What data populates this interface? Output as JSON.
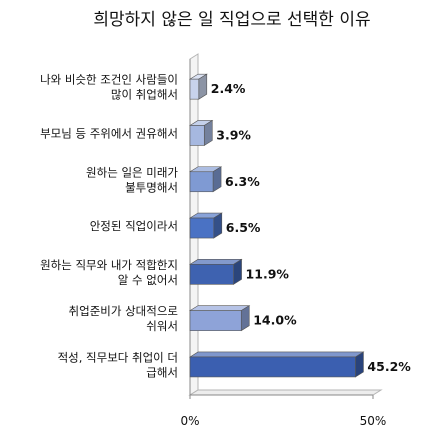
{
  "chart_data": {
    "type": "bar",
    "orientation": "horizontal",
    "title": "희망하지 않은 일 직업으로 선택한 이유",
    "categories": [
      [
        "나와 비슷한 조건인 사람들이",
        "많이 취업해서"
      ],
      [
        "부모님 등 주위에서 권유해서"
      ],
      [
        "원하는 일은 미래가",
        "불투명해서"
      ],
      [
        "안정된 직업이라서"
      ],
      [
        "원하는 직무와 내가 적합한지",
        "알 수 없어서"
      ],
      [
        "취업준비가 상대적으로",
        "쉬워서"
      ],
      [
        "적성, 직무보다 취업이 더",
        "급해서"
      ]
    ],
    "values": [
      2.4,
      3.9,
      6.3,
      6.5,
      11.9,
      14.0,
      45.2
    ],
    "value_labels": [
      "2.4%",
      "3.9%",
      "6.3%",
      "6.5%",
      "11.9%",
      "14.0%",
      "45.2%"
    ],
    "bar_colors": [
      "#c8d3ec",
      "#a6b8e0",
      "#7f9ad3",
      "#4a72c4",
      "#3e62b0",
      "#8ea3d8",
      "#3b5fb0"
    ],
    "xlim": [
      0,
      50
    ],
    "xticks": [
      "0%",
      "50%"
    ],
    "grid": false,
    "legend": "none"
  }
}
